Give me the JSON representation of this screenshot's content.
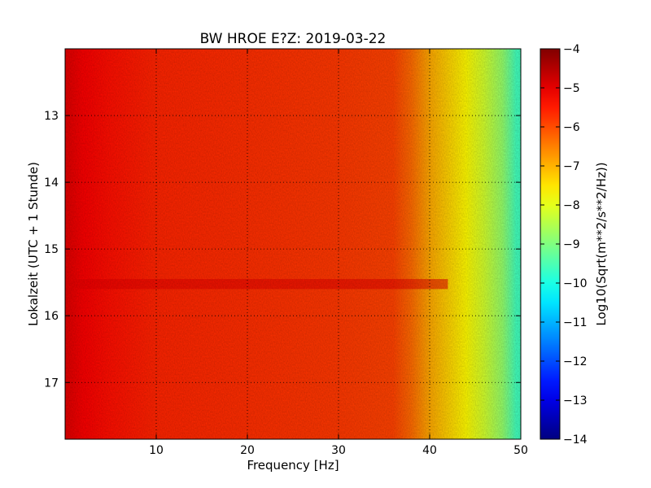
{
  "chart_data": {
    "type": "heatmap",
    "title": "BW HROE E?Z: 2019-03-22",
    "xlabel": "Frequency [Hz]",
    "ylabel": "Lokalzeit (UTC + 1 Stunde)",
    "xlim": [
      0,
      50
    ],
    "ylim": [
      17.85,
      12.0
    ],
    "x_ticks": [
      10,
      20,
      30,
      40,
      50
    ],
    "x_tick_labels": [
      "10",
      "20",
      "30",
      "40",
      "50"
    ],
    "y_ticks": [
      13,
      14,
      15,
      16,
      17
    ],
    "y_tick_labels": [
      "13",
      "14",
      "15",
      "16",
      "17"
    ],
    "grid": true,
    "colorbar": {
      "label": "Log10(Sqrt(m**2/s**2/Hz))",
      "range": [
        -14,
        -4
      ],
      "ticks": [
        -4,
        -5,
        -6,
        -7,
        -8,
        -9,
        -10,
        -11,
        -12,
        -13,
        -14
      ],
      "tick_labels": [
        "−4",
        "−5",
        "−6",
        "−7",
        "−8",
        "−9",
        "−10",
        "−11",
        "−12",
        "−13",
        "−14"
      ],
      "colormap": "jet"
    },
    "frequency_profile": [
      {
        "x": 0.5,
        "value": -5.0
      },
      {
        "x": 2,
        "value": -5.2
      },
      {
        "x": 5,
        "value": -5.4
      },
      {
        "x": 10,
        "value": -5.6
      },
      {
        "x": 20,
        "value": -5.7
      },
      {
        "x": 30,
        "value": -5.8
      },
      {
        "x": 36,
        "value": -5.9
      },
      {
        "x": 38,
        "value": -6.3
      },
      {
        "x": 40,
        "value": -6.9
      },
      {
        "x": 42,
        "value": -7.3
      },
      {
        "x": 44,
        "value": -7.7
      },
      {
        "x": 46,
        "value": -8.2
      },
      {
        "x": 48,
        "value": -8.8
      },
      {
        "x": 49.5,
        "value": -9.6
      }
    ],
    "events": [
      {
        "time_start": 15.45,
        "time_end": 15.6,
        "freq_max": 42,
        "value": -5.0
      }
    ]
  }
}
